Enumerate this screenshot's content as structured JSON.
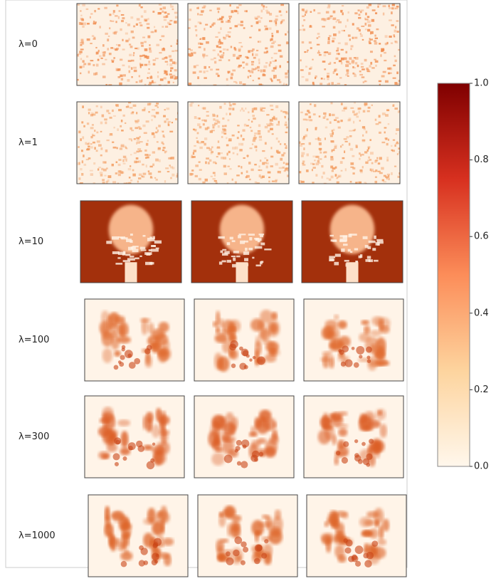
{
  "rows": [
    {
      "label": "λ=0"
    },
    {
      "label": "λ=1"
    },
    {
      "label": "λ=10"
    },
    {
      "label": "λ=100"
    },
    {
      "label": "λ=300"
    },
    {
      "label": "λ=1000"
    }
  ],
  "colorbar": {
    "lim": [
      0,
      1
    ],
    "ticks": [
      {
        "value": 0,
        "label": "0.0"
      },
      {
        "value": 0.2,
        "label": "0.2"
      },
      {
        "value": 0.4,
        "label": "0.4"
      },
      {
        "value": 0.6,
        "label": "0.6"
      },
      {
        "value": 0.8,
        "label": "0.8"
      },
      {
        "value": 1,
        "label": "1.0"
      }
    ]
  }
}
